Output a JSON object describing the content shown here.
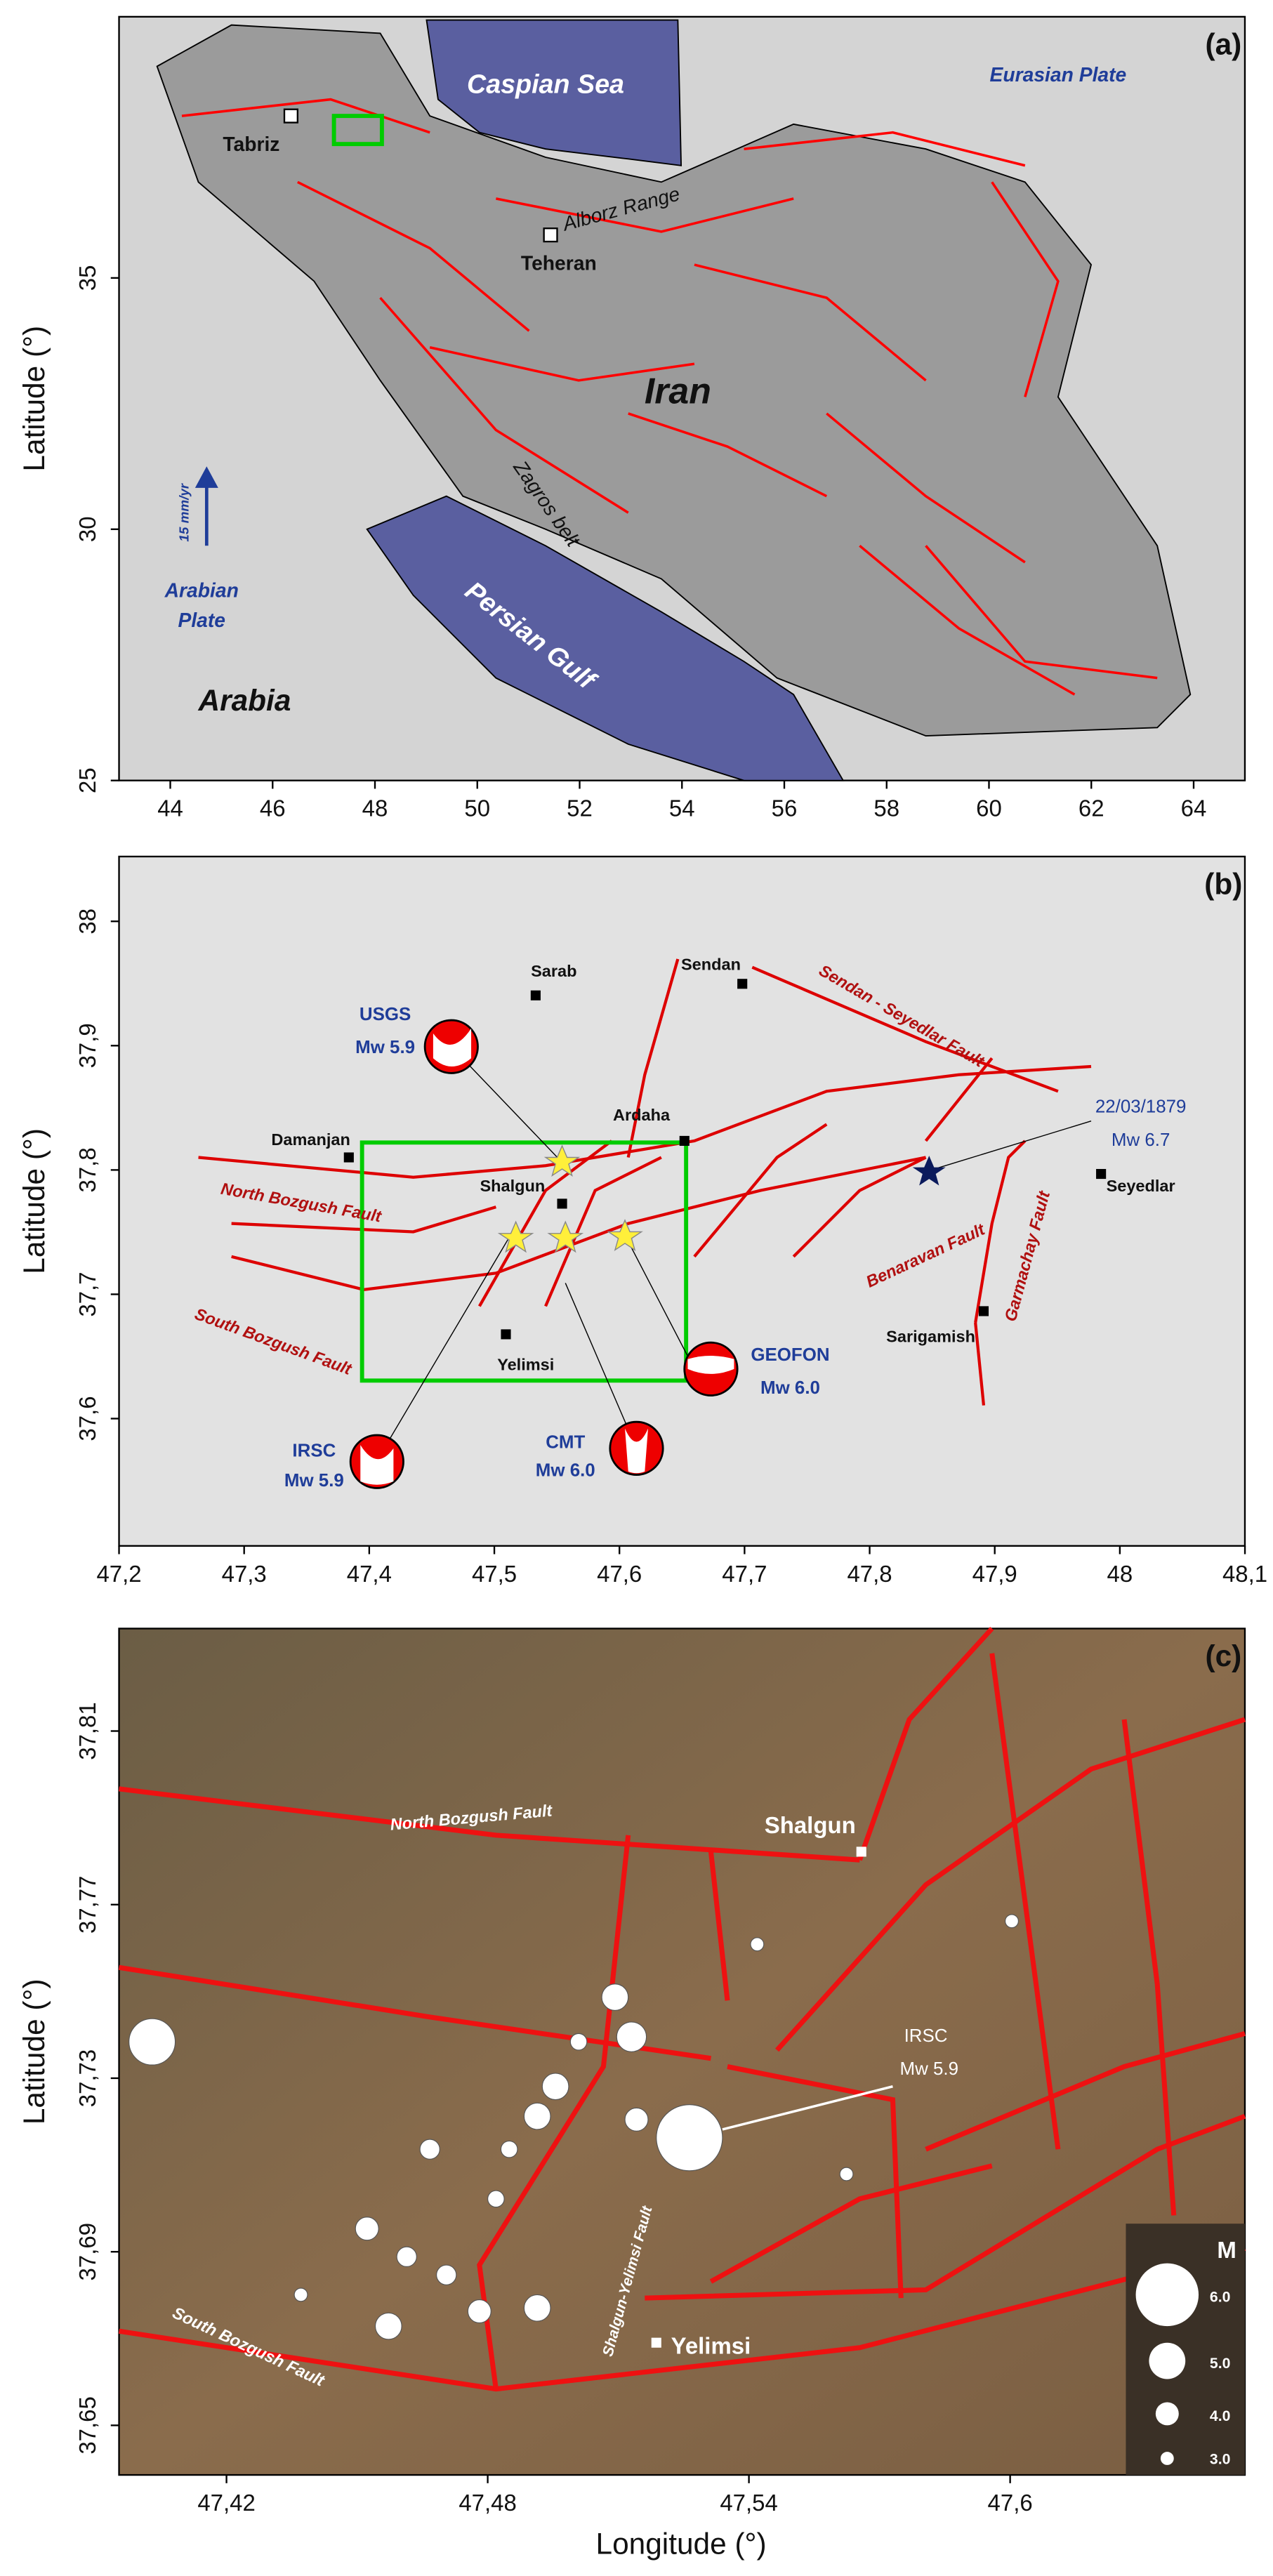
{
  "figure": {
    "xlabel": "Longitude (°)",
    "panels": [
      {
        "label": "(a)",
        "ylabel": "Latitude (°)",
        "xticks": [
          "44",
          "46",
          "48",
          "50",
          "52",
          "54",
          "56",
          "58",
          "60",
          "62",
          "64"
        ],
        "yticks": [
          "25",
          "30",
          "35"
        ],
        "places": [
          "Caspian Sea",
          "Eurasian Plate",
          "Tabriz",
          "Alborz Range",
          "Teheran",
          "Iran",
          "Zagros belt",
          "15 mm/yr",
          "Arabian",
          "Plate",
          "Arabia",
          "Persian Gulf"
        ]
      },
      {
        "label": "(b)",
        "ylabel": "Latitude (°)",
        "xticks": [
          "47,2",
          "47,3",
          "47,4",
          "47,5",
          "47,6",
          "47,7",
          "47,8",
          "47,9",
          "48",
          "48,1"
        ],
        "yticks": [
          "37,6",
          "37,7",
          "37,8",
          "37,9",
          "38"
        ],
        "places": [
          "Sarab",
          "Sendan",
          "Sendan - Seyedlar Fault",
          "USGS",
          "Mw 5.9",
          "Ardaha",
          "22/03/1879",
          "Mw 6.7",
          "Damanjan",
          "Shalgun",
          "North Bozgush Fault",
          "Seyedlar",
          "Benaravan Fault",
          "Garmachay Fault",
          "South Bozgush Fault",
          "Yelimsi",
          "Sarigamish",
          "GEOFON",
          "Mw 6.0",
          "IRSC",
          "Mw 5.9",
          "CMT",
          "Mw 6.0"
        ]
      },
      {
        "label": "(c)",
        "ylabel": "Latitude (°)",
        "xticks": [
          "47,42",
          "47,48",
          "47,54",
          "47,6"
        ],
        "yticks": [
          "37,65",
          "37,69",
          "37,73",
          "37,77",
          "37,81"
        ],
        "places": [
          "North Bozgush Fault",
          "Shalgun",
          "IRSC",
          "Mw 5.9",
          "Shalgun-Yelimsi Fault",
          "Yelimsi",
          "South Bozgush Fault",
          "M",
          "6.0",
          "5.0",
          "4.0",
          "3.0"
        ]
      }
    ]
  }
}
